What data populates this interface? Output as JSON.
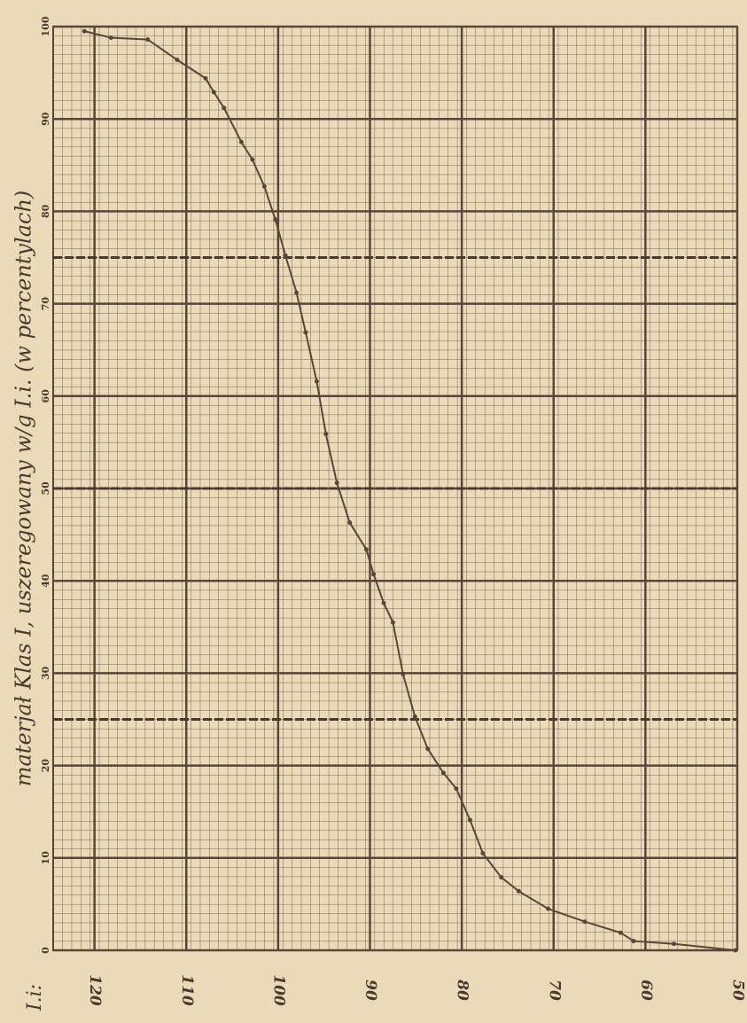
{
  "chart_data": {
    "type": "line",
    "title": "materjał Klas I, uszeregowany w/g I.i. (w percentylach)",
    "x_label": "I.i:",
    "x": [
      121.1,
      118.2,
      114.2,
      111.0,
      107.9,
      107.0,
      105.9,
      104.0,
      102.8,
      101.5,
      100.3,
      99.2,
      98.0,
      97.0,
      95.8,
      94.8,
      93.6,
      92.2,
      90.4,
      89.6,
      88.5,
      87.5,
      86.4,
      85.1,
      83.7,
      82.0,
      80.6,
      79.1,
      77.7,
      75.7,
      73.8,
      70.6,
      66.6,
      62.7,
      61.3,
      56.9,
      50.2
    ],
    "series": [
      {
        "color": "#5a4638",
        "values": [
          99.5,
          98.8,
          98.6,
          96.4,
          94.4,
          92.9,
          91.2,
          87.5,
          85.6,
          82.7,
          79.1,
          75.2,
          71.2,
          66.9,
          61.6,
          55.9,
          50.6,
          46.3,
          43.4,
          40.7,
          37.6,
          35.5,
          29.9,
          25.3,
          21.8,
          19.2,
          17.5,
          14.1,
          10.5,
          7.9,
          6.4,
          4.5,
          3.1,
          1.9,
          1.0,
          0.7,
          0
        ]
      }
    ],
    "xlim": [
      124.5,
      50
    ],
    "ylim": [
      0,
      100
    ],
    "xticks": [
      120,
      110,
      100,
      90,
      80,
      70,
      60,
      50
    ],
    "yticks": [
      0,
      10,
      20,
      30,
      40,
      50,
      60,
      70,
      80,
      90,
      100
    ],
    "reference_lines": [
      25,
      50,
      75
    ],
    "grid": true
  }
}
